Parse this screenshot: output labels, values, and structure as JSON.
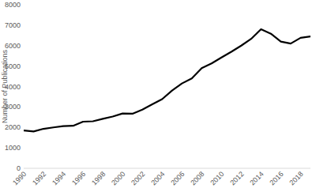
{
  "chart_data": {
    "type": "line",
    "y_label": "Number of Publications",
    "x": [
      1990,
      1991,
      1992,
      1993,
      1994,
      1995,
      1996,
      1997,
      1998,
      1999,
      2000,
      2001,
      2002,
      2003,
      2004,
      2005,
      2006,
      2007,
      2008,
      2009,
      2010,
      2011,
      2012,
      2013,
      2014,
      2015,
      2016,
      2017,
      2018,
      2019
    ],
    "values": [
      1850,
      1800,
      1930,
      2000,
      2060,
      2080,
      2280,
      2300,
      2420,
      2530,
      2680,
      2670,
      2870,
      3130,
      3380,
      3800,
      4150,
      4400,
      4900,
      5130,
      5420,
      5700,
      6000,
      6330,
      6800,
      6580,
      6200,
      6100,
      6380,
      6450
    ],
    "color": "#000000",
    "xlim": [
      1990,
      2019
    ],
    "xticks": [
      1990,
      1992,
      1994,
      1996,
      1998,
      2000,
      2002,
      2004,
      2006,
      2008,
      2010,
      2012,
      2014,
      2016,
      2018
    ],
    "ylim": [
      0,
      8000
    ],
    "yticks": [
      0,
      1000,
      2000,
      3000,
      4000,
      5000,
      6000,
      7000,
      8000
    ],
    "grid": false
  }
}
